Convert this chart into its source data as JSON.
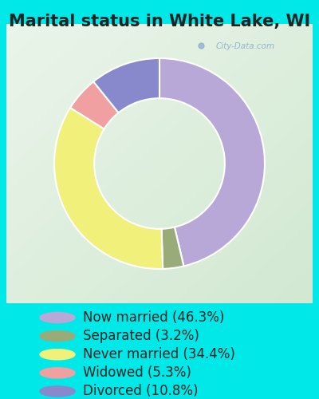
{
  "title": "Marital status in White Lake, WI",
  "slices": [
    46.3,
    3.2,
    34.4,
    5.3,
    10.8
  ],
  "labels": [
    "Now married (46.3%)",
    "Separated (3.2%)",
    "Never married (34.4%)",
    "Widowed (5.3%)",
    "Divorced (10.8%)"
  ],
  "colors": [
    "#b8a8d8",
    "#9aab7a",
    "#f0f07a",
    "#f0a0a0",
    "#8888cc"
  ],
  "bg_color": "#00e8e8",
  "chart_bg_grad_tl": "#e8f5ec",
  "chart_bg_grad_br": "#d0ead0",
  "watermark": "City-Data.com",
  "title_fontsize": 15,
  "legend_fontsize": 12,
  "chart_border_color": "#ccddcc",
  "donut_width": 0.38
}
